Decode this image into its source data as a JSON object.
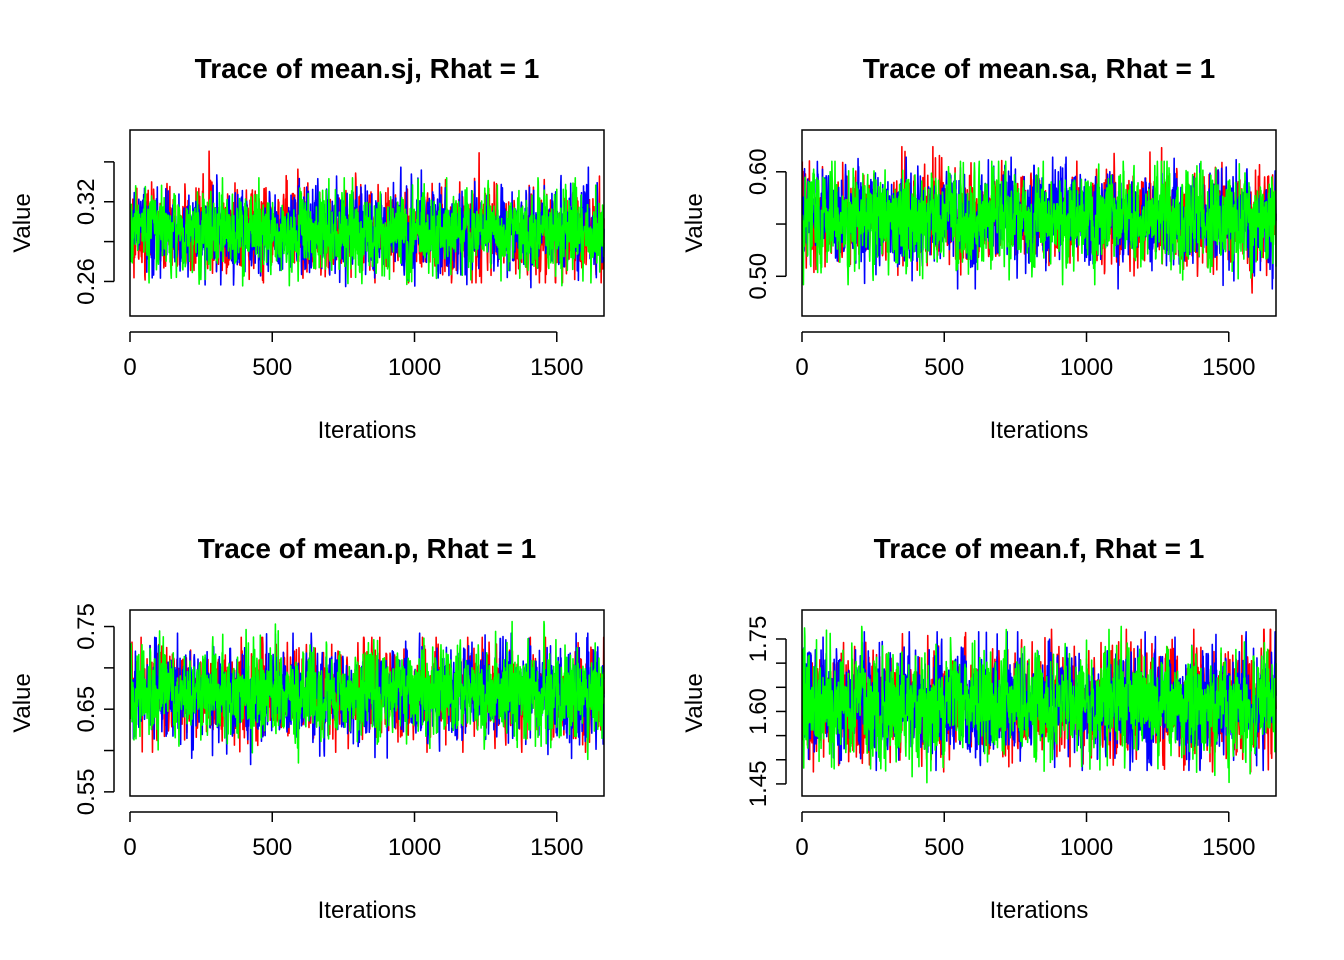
{
  "chart_data": [
    {
      "type": "line",
      "title": "Trace of mean.sj, Rhat = 1",
      "xlabel": "Iterations",
      "ylabel": "Value",
      "xlim": [
        0,
        1666
      ],
      "ylim": [
        0.234,
        0.374
      ],
      "xticks": [
        0,
        500,
        1000,
        1500
      ],
      "yticks": [
        0.26,
        0.29,
        0.32,
        0.35
      ],
      "ytick_labels": [
        "0.26",
        "",
        "0.32",
        ""
      ],
      "grid": false,
      "series": [
        {
          "color": "#ff0000",
          "n": 1666,
          "mean": 0.298,
          "sd": 0.015,
          "min": 0.259,
          "max": 0.368
        },
        {
          "color": "#0000ff",
          "n": 1666,
          "mean": 0.298,
          "sd": 0.015,
          "min": 0.254,
          "max": 0.346
        },
        {
          "color": "#00ff00",
          "n": 1666,
          "mean": 0.298,
          "sd": 0.015,
          "min": 0.247,
          "max": 0.338
        }
      ]
    },
    {
      "type": "line",
      "title": "Trace of mean.sa, Rhat = 1",
      "xlabel": "Iterations",
      "ylabel": "Value",
      "xlim": [
        0,
        1666
      ],
      "ylim": [
        0.462,
        0.64
      ],
      "xticks": [
        0,
        500,
        1000,
        1500
      ],
      "yticks": [
        0.5,
        0.55,
        0.6
      ],
      "ytick_labels": [
        "0.50",
        "",
        "0.60"
      ],
      "grid": false,
      "series": [
        {
          "color": "#ff0000",
          "n": 1666,
          "mean": 0.555,
          "sd": 0.022,
          "min": 0.474,
          "max": 0.624
        },
        {
          "color": "#0000ff",
          "n": 1666,
          "mean": 0.555,
          "sd": 0.022,
          "min": 0.488,
          "max": 0.614
        },
        {
          "color": "#00ff00",
          "n": 1666,
          "mean": 0.555,
          "sd": 0.022,
          "min": 0.492,
          "max": 0.61
        }
      ]
    },
    {
      "type": "line",
      "title": "Trace of mean.p, Rhat = 1",
      "xlabel": "Iterations",
      "ylabel": "Value",
      "xlim": [
        0,
        1666
      ],
      "ylim": [
        0.545,
        0.77
      ],
      "xticks": [
        0,
        500,
        1000,
        1500
      ],
      "yticks": [
        0.55,
        0.6,
        0.65,
        0.7,
        0.75
      ],
      "ytick_labels": [
        "0.55",
        "",
        "0.65",
        "",
        "0.75"
      ],
      "grid": false,
      "series": [
        {
          "color": "#ff0000",
          "n": 1666,
          "mean": 0.67,
          "sd": 0.027,
          "min": 0.598,
          "max": 0.737
        },
        {
          "color": "#0000ff",
          "n": 1666,
          "mean": 0.67,
          "sd": 0.027,
          "min": 0.55,
          "max": 0.742
        },
        {
          "color": "#00ff00",
          "n": 1666,
          "mean": 0.67,
          "sd": 0.027,
          "min": 0.585,
          "max": 0.756
        }
      ]
    },
    {
      "type": "line",
      "title": "Trace of mean.f, Rhat = 1",
      "xlabel": "Iterations",
      "ylabel": "Value",
      "xlim": [
        0,
        1666
      ],
      "ylim": [
        1.425,
        1.81
      ],
      "xticks": [
        0,
        500,
        1000,
        1500
      ],
      "yticks": [
        1.45,
        1.5,
        1.55,
        1.6,
        1.65,
        1.7,
        1.75
      ],
      "ytick_labels": [
        "1.45",
        "",
        "",
        "1.60",
        "",
        "",
        "1.75"
      ],
      "grid": false,
      "series": [
        {
          "color": "#ff0000",
          "n": 1666,
          "mean": 1.615,
          "sd": 0.055,
          "min": 1.475,
          "max": 1.77
        },
        {
          "color": "#0000ff",
          "n": 1666,
          "mean": 1.615,
          "sd": 0.055,
          "min": 1.478,
          "max": 1.765
        },
        {
          "color": "#00ff00",
          "n": 1666,
          "mean": 1.615,
          "sd": 0.055,
          "min": 1.44,
          "max": 1.79
        }
      ]
    }
  ]
}
